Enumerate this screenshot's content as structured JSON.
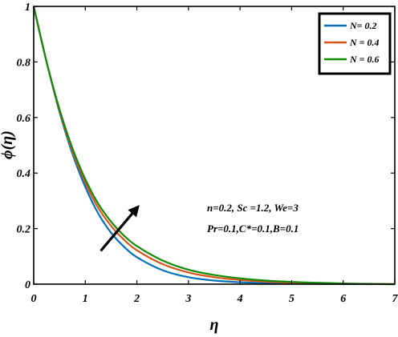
{
  "chart_data": {
    "type": "line",
    "title": "",
    "xlabel": "η",
    "ylabel": "ϕ(η)",
    "xlim": [
      0,
      7
    ],
    "ylim": [
      0,
      1
    ],
    "xticks": [
      0,
      1,
      2,
      3,
      4,
      5,
      6,
      7
    ],
    "xtick_labels": [
      "0",
      "1",
      "2",
      "3",
      "4",
      "5",
      "6",
      "7"
    ],
    "yticks": [
      0,
      0.2,
      0.4,
      0.6,
      0.8,
      1
    ],
    "ytick_labels": [
      "0",
      "0.2",
      "0.4",
      "0.6",
      "0.8",
      "1"
    ],
    "grid": false,
    "legend_position": "top-right",
    "x": [
      0,
      0.25,
      0.5,
      0.75,
      1,
      1.25,
      1.5,
      1.75,
      2,
      2.5,
      3,
      3.5,
      4,
      4.5,
      5,
      5.5,
      6,
      6.5,
      7
    ],
    "series": [
      {
        "name": "N= 0.2",
        "color": "#0072BD",
        "values": [
          1.0,
          0.8,
          0.62,
          0.47,
          0.35,
          0.255,
          0.185,
          0.135,
          0.097,
          0.05,
          0.025,
          0.013,
          0.007,
          0.004,
          0.002,
          0.001,
          0.0005,
          0.0002,
          0.0
        ]
      },
      {
        "name": "N = 0.4",
        "color": "#D95319",
        "values": [
          1.0,
          0.8,
          0.625,
          0.48,
          0.365,
          0.275,
          0.21,
          0.16,
          0.122,
          0.072,
          0.042,
          0.025,
          0.015,
          0.009,
          0.005,
          0.003,
          0.0015,
          0.0005,
          0.0
        ]
      },
      {
        "name": "N = 0.6",
        "color": "#138A07",
        "values": [
          1.0,
          0.8,
          0.63,
          0.49,
          0.378,
          0.29,
          0.225,
          0.175,
          0.137,
          0.085,
          0.052,
          0.033,
          0.021,
          0.013,
          0.008,
          0.005,
          0.0025,
          0.001,
          0.0
        ]
      }
    ],
    "annotations": [
      "n=0.2, Sc =1.2, We=3",
      "Pr=0.1,C*=0.1,B=0.1"
    ],
    "arrow": {
      "from": [
        1.3,
        0.12
      ],
      "to": [
        2.05,
        0.285
      ],
      "color": "#000000"
    }
  }
}
